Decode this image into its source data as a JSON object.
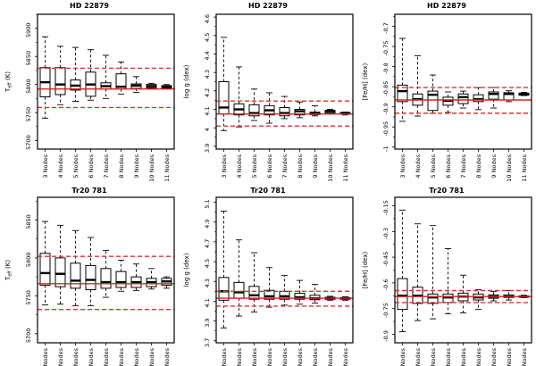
{
  "figure": {
    "background": "#ffffff",
    "box_fill": "#ffffff",
    "box_stroke": "#000000",
    "median_color": "#000000",
    "whisker_color": "#1a1a1a",
    "ref_solid_color": "#dd2020",
    "ref_dashed_color": "#e03030",
    "axis_color": "#000000"
  },
  "chart_data": [
    {
      "type": "box",
      "title": "HD 22879",
      "ylabel": "T_eff (K)",
      "xlabel": "",
      "categories": [
        "3 Nodes",
        "4 Nodes",
        "5 Nodes",
        "6 Nodes",
        "7 Nodes",
        "8 Nodes",
        "9 Nodes",
        "10 Nodes",
        "11 Nodes"
      ],
      "ylim": [
        5685,
        5925
      ],
      "yticks": [
        5700,
        5750,
        5800,
        5850,
        5900
      ],
      "ref_line": 5792,
      "ref_dashed": [
        5829,
        5759
      ],
      "boxes": [
        {
          "med": 5804,
          "q1": 5778,
          "q3": 5830,
          "lo": 5740,
          "hi": 5885
        },
        {
          "med": 5800,
          "q1": 5782,
          "q3": 5830,
          "lo": 5764,
          "hi": 5868
        },
        {
          "med": 5798,
          "q1": 5790,
          "q3": 5808,
          "lo": 5770,
          "hi": 5866
        },
        {
          "med": 5800,
          "q1": 5779,
          "q3": 5822,
          "lo": 5772,
          "hi": 5862
        },
        {
          "med": 5797,
          "q1": 5792,
          "q3": 5803,
          "lo": 5775,
          "hi": 5852
        },
        {
          "med": 5796,
          "q1": 5792,
          "q3": 5819,
          "lo": 5783,
          "hi": 5840
        },
        {
          "med": 5798,
          "q1": 5793,
          "q3": 5801,
          "lo": 5786,
          "hi": 5814
        },
        {
          "med": 5797,
          "q1": 5794,
          "q3": 5800,
          "lo": 5792,
          "hi": 5802
        },
        {
          "med": 5796,
          "q1": 5794,
          "q3": 5798,
          "lo": 5793,
          "hi": 5800
        }
      ]
    },
    {
      "type": "box",
      "title": "HD 22879",
      "ylabel": "log g (dex)",
      "xlabel": "",
      "categories": [
        "3 Nodes",
        "4 Nodes",
        "5 Nodes",
        "6 Nodes",
        "7 Nodes",
        "8 Nodes",
        "9 Nodes",
        "10 Nodes",
        "11 Nodes"
      ],
      "ylim": [
        3.885,
        4.615
      ],
      "yticks": [
        3.9,
        4,
        4.1,
        4.2,
        4.3,
        4.4,
        4.5,
        4.6
      ],
      "ref_line": 4.075,
      "ref_dashed": [
        4.145,
        4.01
      ],
      "boxes": [
        {
          "med": 4.11,
          "q1": 4.075,
          "q3": 4.25,
          "lo": 3.985,
          "hi": 4.49
        },
        {
          "med": 4.1,
          "q1": 4.07,
          "q3": 4.13,
          "lo": 4.005,
          "hi": 4.33
        },
        {
          "med": 4.08,
          "q1": 4.065,
          "q3": 4.125,
          "lo": 4.04,
          "hi": 4.21
        },
        {
          "med": 4.095,
          "q1": 4.07,
          "q3": 4.12,
          "lo": 4.025,
          "hi": 4.19
        },
        {
          "med": 4.08,
          "q1": 4.065,
          "q3": 4.11,
          "lo": 4.05,
          "hi": 4.17
        },
        {
          "med": 4.09,
          "q1": 4.07,
          "q3": 4.1,
          "lo": 4.055,
          "hi": 4.14
        },
        {
          "med": 4.08,
          "q1": 4.072,
          "q3": 4.085,
          "lo": 4.065,
          "hi": 4.12
        },
        {
          "med": 4.09,
          "q1": 4.08,
          "q3": 4.095,
          "lo": 4.075,
          "hi": 4.1
        },
        {
          "med": 4.08,
          "q1": 4.075,
          "q3": 4.083,
          "lo": 4.07,
          "hi": 4.085
        }
      ]
    },
    {
      "type": "box",
      "title": "HD 22879",
      "ylabel": "[Fe/H] (dex)",
      "xlabel": "",
      "categories": [
        "3 Nodes",
        "4 Nodes",
        "5 Nodes",
        "6 Nodes",
        "7 Nodes",
        "8 Nodes",
        "9 Nodes",
        "10 Nodes",
        "11 Nodes"
      ],
      "ylim": [
        -1.005,
        -0.67
      ],
      "yticks": [
        -1,
        -0.95,
        -0.9,
        -0.85,
        -0.8,
        -0.75,
        -0.7
      ],
      "ref_line": -0.883,
      "ref_dashed": [
        -0.852,
        -0.916
      ],
      "boxes": [
        {
          "med": -0.861,
          "q1": -0.887,
          "q3": -0.846,
          "lo": -0.936,
          "hi": -0.73
        },
        {
          "med": -0.881,
          "q1": -0.896,
          "q3": -0.868,
          "lo": -0.923,
          "hi": -0.773
        },
        {
          "med": -0.87,
          "q1": -0.909,
          "q3": -0.861,
          "lo": -0.916,
          "hi": -0.821
        },
        {
          "med": -0.885,
          "q1": -0.896,
          "q3": -0.876,
          "lo": -0.914,
          "hi": -0.863
        },
        {
          "med": -0.876,
          "q1": -0.892,
          "q3": -0.868,
          "lo": -0.903,
          "hi": -0.861
        },
        {
          "med": -0.881,
          "q1": -0.887,
          "q3": -0.87,
          "lo": -0.907,
          "hi": -0.852
        },
        {
          "med": -0.868,
          "q1": -0.881,
          "q3": -0.863,
          "lo": -0.903,
          "hi": -0.852
        },
        {
          "med": -0.868,
          "q1": -0.883,
          "q3": -0.865,
          "lo": -0.887,
          "hi": -0.86
        },
        {
          "med": -0.868,
          "q1": -0.871,
          "q3": -0.866,
          "lo": -0.872,
          "hi": -0.864
        }
      ]
    },
    {
      "type": "box",
      "title": "Tr20 781",
      "ylabel": "T_eff (K)",
      "xlabel": "",
      "categories": [
        "3 Nodes",
        "4 Nodes",
        "5 Nodes",
        "6 Nodes",
        "7 Nodes",
        "8 Nodes",
        "9 Nodes",
        "10 Nodes",
        "11 Nodes"
      ],
      "ylim": [
        5688,
        5880
      ],
      "yticks": [
        5700,
        5750,
        5800,
        5850
      ],
      "ref_line": 5766,
      "ref_dashed": [
        5802,
        5732
      ],
      "boxes": [
        {
          "med": 5780,
          "q1": 5764,
          "q3": 5806,
          "lo": 5738,
          "hi": 5848
        },
        {
          "med": 5779,
          "q1": 5762,
          "q3": 5800,
          "lo": 5739,
          "hi": 5843
        },
        {
          "med": 5770,
          "q1": 5760,
          "q3": 5793,
          "lo": 5737,
          "hi": 5836
        },
        {
          "med": 5771,
          "q1": 5758,
          "q3": 5790,
          "lo": 5737,
          "hi": 5827
        },
        {
          "med": 5768,
          "q1": 5760,
          "q3": 5786,
          "lo": 5748,
          "hi": 5810
        },
        {
          "med": 5768,
          "q1": 5761,
          "q3": 5782,
          "lo": 5756,
          "hi": 5797
        },
        {
          "med": 5768,
          "q1": 5761,
          "q3": 5775,
          "lo": 5757,
          "hi": 5792
        },
        {
          "med": 5768,
          "q1": 5762,
          "q3": 5773,
          "lo": 5759,
          "hi": 5786
        },
        {
          "med": 5769,
          "q1": 5764,
          "q3": 5773,
          "lo": 5760,
          "hi": 5775
        }
      ]
    },
    {
      "type": "box",
      "title": "Tr20 781",
      "ylabel": "log g (dex)",
      "xlabel": "",
      "categories": [
        "3 Nodes",
        "4 Nodes",
        "5 Nodes",
        "6 Nodes",
        "7 Nodes",
        "8 Nodes",
        "9 Nodes",
        "10 Nodes",
        "11 Nodes"
      ],
      "ylim": [
        3.68,
        5.15
      ],
      "yticks": [
        3.7,
        3.9,
        4.1,
        4.3,
        4.5,
        4.7,
        4.9,
        5.1
      ],
      "ref_line": 4.13,
      "ref_dashed": [
        4.2,
        4.05
      ],
      "boxes": [
        {
          "med": 4.2,
          "q1": 4.11,
          "q3": 4.34,
          "lo": 3.83,
          "hi": 5.01
        },
        {
          "med": 4.19,
          "q1": 4.13,
          "q3": 4.29,
          "lo": 3.95,
          "hi": 4.72
        },
        {
          "med": 4.16,
          "q1": 4.12,
          "q3": 4.25,
          "lo": 3.99,
          "hi": 4.59
        },
        {
          "med": 4.15,
          "q1": 4.12,
          "q3": 4.21,
          "lo": 4.04,
          "hi": 4.44
        },
        {
          "med": 4.15,
          "q1": 4.12,
          "q3": 4.2,
          "lo": 4.06,
          "hi": 4.36
        },
        {
          "med": 4.14,
          "q1": 4.12,
          "q3": 4.18,
          "lo": 4.07,
          "hi": 4.31
        },
        {
          "med": 4.13,
          "q1": 4.115,
          "q3": 4.16,
          "lo": 4.08,
          "hi": 4.27
        },
        {
          "med": 4.13,
          "q1": 4.12,
          "q3": 4.14,
          "lo": 4.11,
          "hi": 4.15
        },
        {
          "med": 4.13,
          "q1": 4.12,
          "q3": 4.137,
          "lo": 4.11,
          "hi": 4.145
        }
      ]
    },
    {
      "type": "box",
      "title": "Tr20 781",
      "ylabel": "[Fe/H] (dex)",
      "xlabel": "",
      "categories": [
        "3 Nodes",
        "4 Nodes",
        "5 Nodes",
        "6 Nodes",
        "7 Nodes",
        "8 Nodes",
        "9 Nodes",
        "10 Nodes",
        "11 Nodes"
      ],
      "ylim": [
        -0.95,
        -0.1
      ],
      "yticks": [
        -0.9,
        -0.75,
        -0.6,
        -0.45,
        -0.3,
        -0.15
      ],
      "ref_line": -0.68,
      "ref_dashed": [
        -0.645,
        -0.715
      ],
      "boxes": [
        {
          "med": -0.675,
          "q1": -0.755,
          "q3": -0.575,
          "lo": -0.885,
          "hi": -0.175
        },
        {
          "med": -0.675,
          "q1": -0.72,
          "q3": -0.625,
          "lo": -0.82,
          "hi": -0.255
        },
        {
          "med": -0.685,
          "q1": -0.72,
          "q3": -0.665,
          "lo": -0.81,
          "hi": -0.265
        },
        {
          "med": -0.685,
          "q1": -0.715,
          "q3": -0.665,
          "lo": -0.78,
          "hi": -0.4
        },
        {
          "med": -0.68,
          "q1": -0.705,
          "q3": -0.66,
          "lo": -0.775,
          "hi": -0.555
        },
        {
          "med": -0.685,
          "q1": -0.7,
          "q3": -0.665,
          "lo": -0.755,
          "hi": -0.64
        },
        {
          "med": -0.68,
          "q1": -0.69,
          "q3": -0.67,
          "lo": -0.705,
          "hi": -0.65
        },
        {
          "med": -0.68,
          "q1": -0.685,
          "q3": -0.67,
          "lo": -0.7,
          "hi": -0.645
        },
        {
          "med": -0.68,
          "q1": -0.683,
          "q3": -0.677,
          "lo": -0.686,
          "hi": -0.672
        }
      ]
    }
  ]
}
